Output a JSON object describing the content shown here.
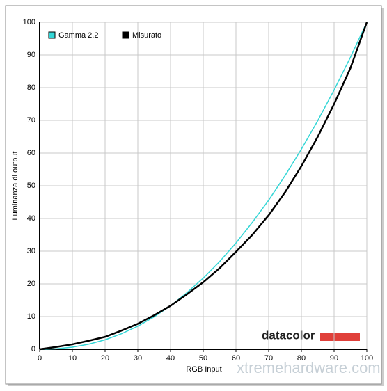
{
  "chart_data": {
    "type": "line",
    "x": [
      0,
      5,
      10,
      15,
      20,
      25,
      30,
      35,
      40,
      45,
      50,
      55,
      60,
      65,
      70,
      75,
      80,
      85,
      90,
      95,
      100
    ],
    "series": [
      {
        "name": "Gamma 2.2",
        "color": "#33d6d6",
        "values": [
          0,
          0.14,
          0.63,
          1.54,
          2.9,
          4.74,
          7.07,
          9.93,
          13.3,
          17.3,
          21.76,
          26.8,
          32.5,
          38.8,
          45.6,
          53.1,
          61.2,
          69.9,
          79.3,
          89.3,
          100
        ]
      },
      {
        "name": "Misurato",
        "color": "#000000",
        "values": [
          0,
          0.7,
          1.5,
          2.6,
          3.8,
          5.7,
          7.8,
          10.4,
          13.3,
          16.8,
          20.5,
          24.8,
          29.8,
          35,
          41,
          48,
          56,
          65,
          75,
          86,
          100
        ]
      }
    ],
    "xlabel": "RGB Input",
    "ylabel": "Luminanza di output",
    "xlim": [
      0,
      100
    ],
    "ylim": [
      0,
      100
    ],
    "xticks": [
      0,
      10,
      20,
      30,
      40,
      50,
      60,
      70,
      80,
      90,
      100
    ],
    "yticks": [
      0,
      10,
      20,
      30,
      40,
      50,
      60,
      70,
      80,
      90,
      100
    ],
    "grid": true,
    "legend": "top-left",
    "logo": "datacolor",
    "watermark": "xtremehardware.com"
  }
}
